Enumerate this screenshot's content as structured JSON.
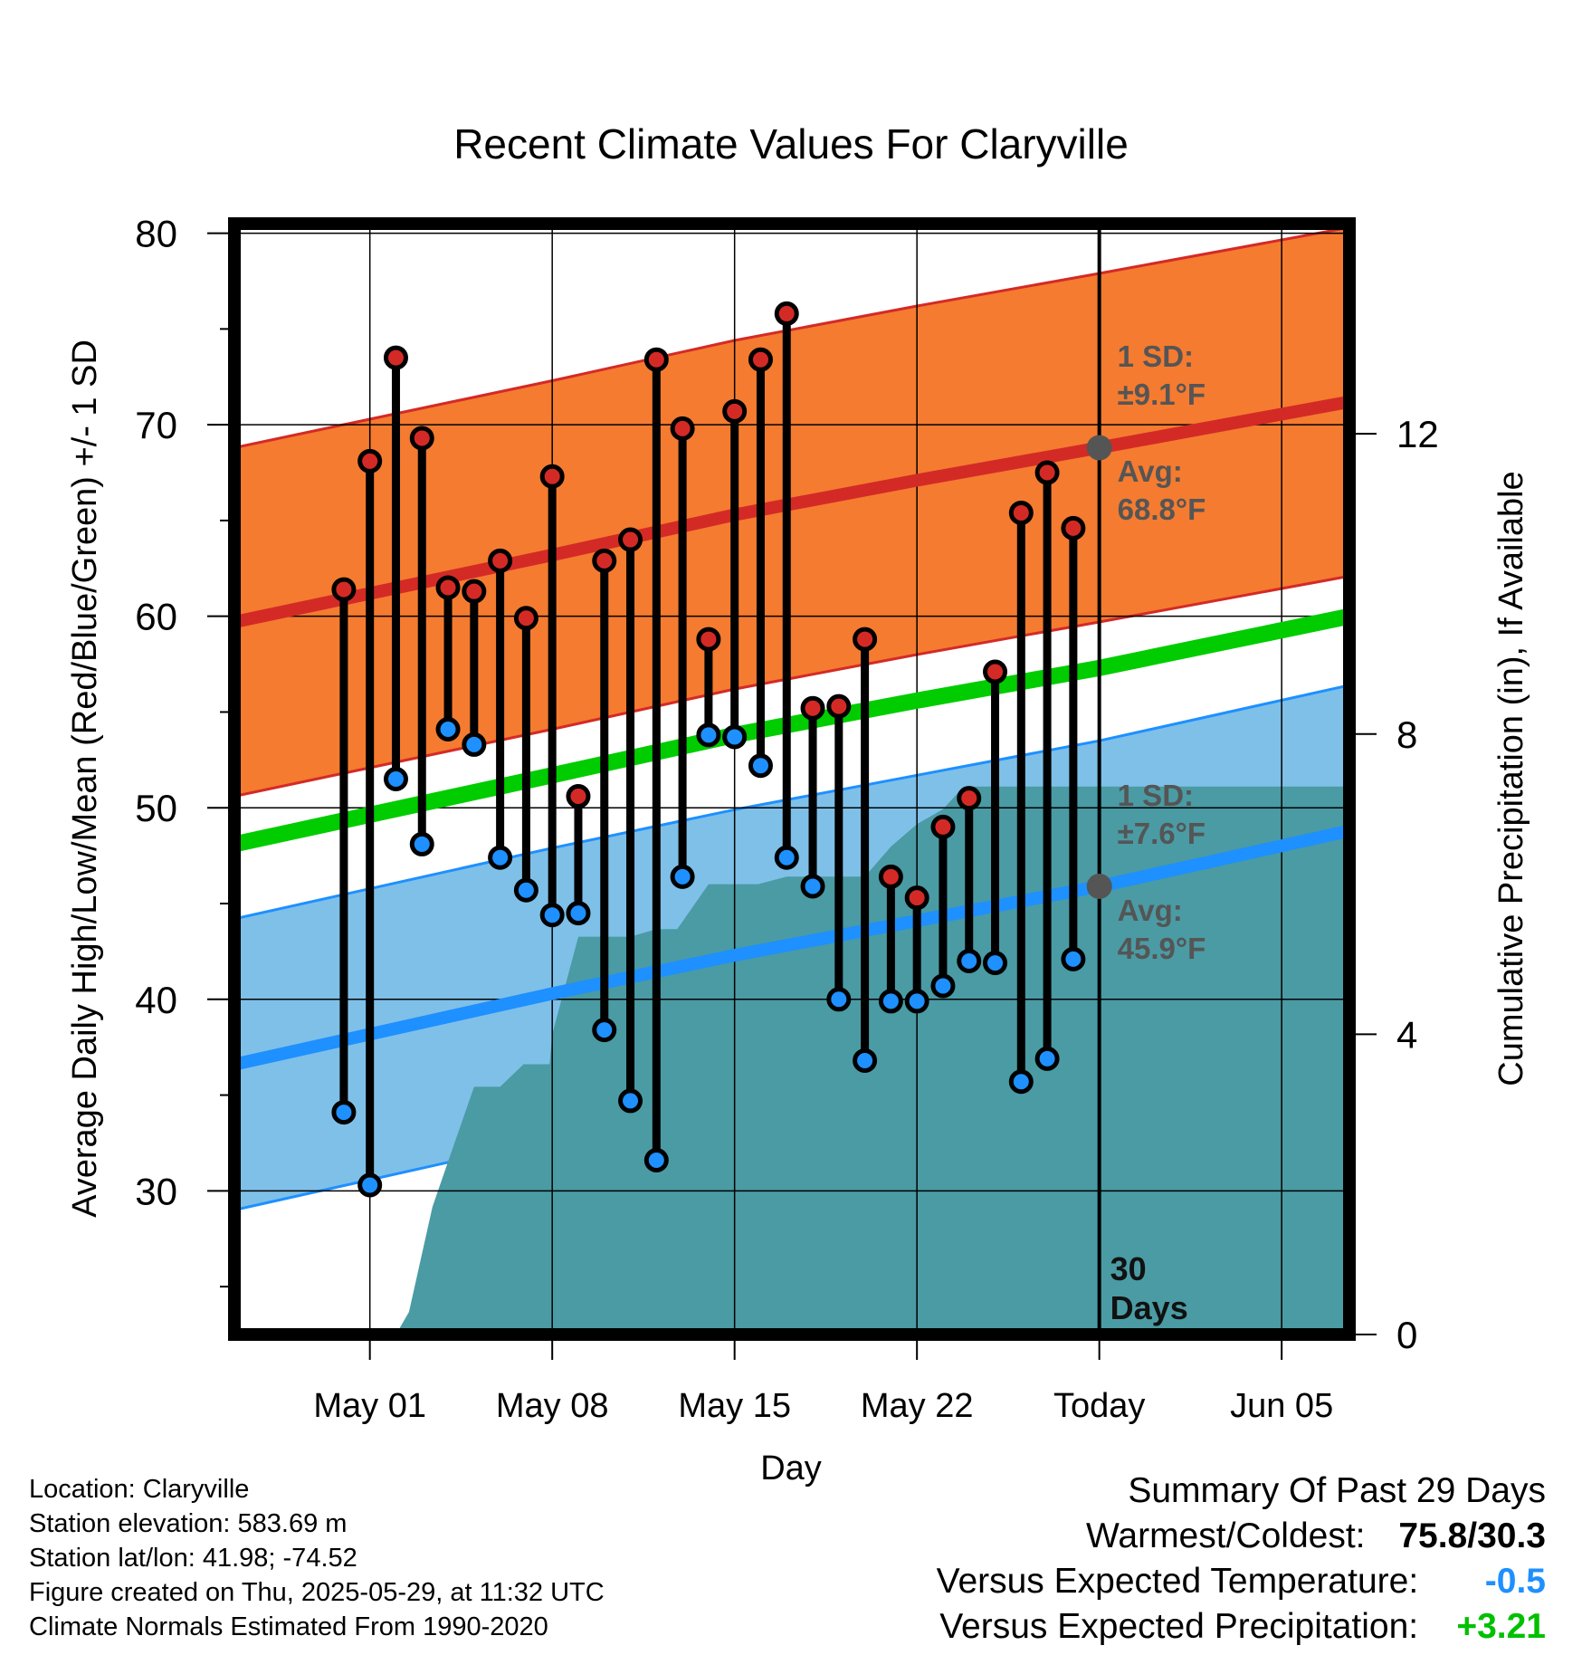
{
  "chart_data": {
    "type": "line",
    "title": "Recent Climate Values For Claryville",
    "xlabel": "Day",
    "ylabel_left": "Average Daily High/Low/Mean (Red/Blue/Green) +/- 1 SD",
    "ylabel_right": "Cumulative Precipitation (in), If Available",
    "ylim_left": [
      22.5,
      80.5
    ],
    "ylim_right": [
      0,
      14.8
    ],
    "xlim_days": [
      -33.2,
      9.6
    ],
    "x_ticks": [
      {
        "day": -28,
        "label": "May 01"
      },
      {
        "day": -21,
        "label": "May 08"
      },
      {
        "day": -14,
        "label": "May 15"
      },
      {
        "day": -7,
        "label": "May 22"
      },
      {
        "day": 0,
        "label": "Today"
      },
      {
        "day": 7,
        "label": "Jun 05"
      }
    ],
    "y_ticks_left": [
      30,
      40,
      50,
      60,
      70,
      80
    ],
    "y_ticks_right": [
      0,
      4,
      8,
      12
    ],
    "grid": true,
    "x_day_note": "x values are days relative to Today (May 29)",
    "normal_high": {
      "x": [
        -33.2,
        -21,
        -14,
        -7,
        0,
        9.6
      ],
      "avg": [
        59.7,
        63.2,
        65.3,
        67.1,
        68.8,
        71.2
      ],
      "sd": 9.1
    },
    "normal_low": {
      "x": [
        -33.2,
        -21,
        -14,
        -7,
        0,
        9.6
      ],
      "avg": [
        36.6,
        40.3,
        42.3,
        44.1,
        45.9,
        48.8
      ],
      "sd": 7.6
    },
    "normal_mean": {
      "x": [
        -33.2,
        -21,
        -14,
        -7,
        0,
        9.6
      ],
      "values": [
        48.1,
        51.7,
        53.8,
        55.6,
        57.3,
        60.0
      ]
    },
    "series": [
      {
        "name": "High",
        "x": [
          -29,
          -28,
          -27,
          -26,
          -25,
          -24,
          -23,
          -22,
          -21,
          -20,
          -19,
          -18,
          -17,
          -16,
          -15,
          -14,
          -13,
          -12,
          -11,
          -10,
          -9,
          -8,
          -7,
          -6,
          -5,
          -4,
          -3,
          -2,
          -1
        ],
        "values": [
          61.4,
          68.1,
          73.5,
          69.3,
          61.5,
          61.3,
          62.9,
          59.9,
          67.3,
          50.6,
          62.9,
          64.0,
          73.4,
          69.8,
          58.8,
          70.7,
          73.4,
          75.8,
          55.2,
          55.3,
          58.8,
          46.4,
          45.3,
          49.0,
          50.5,
          57.1,
          65.4,
          67.5,
          64.6
        ]
      },
      {
        "name": "Low",
        "x": [
          -29,
          -28,
          -27,
          -26,
          -25,
          -24,
          -23,
          -22,
          -21,
          -20,
          -19,
          -18,
          -17,
          -16,
          -15,
          -14,
          -13,
          -12,
          -11,
          -10,
          -9,
          -8,
          -7,
          -6,
          -5,
          -4,
          -3,
          -2,
          -1
        ],
        "values": [
          34.1,
          30.3,
          51.5,
          48.1,
          54.1,
          53.3,
          47.4,
          45.7,
          44.4,
          44.5,
          38.4,
          34.7,
          31.6,
          46.4,
          53.8,
          53.7,
          52.2,
          47.4,
          45.9,
          40.0,
          36.8,
          39.9,
          39.9,
          40.7,
          42.0,
          41.9,
          35.7,
          36.9,
          42.1
        ]
      },
      {
        "name": "Cumulative Precipitation",
        "x": [
          -28.8,
          -27.0,
          -26.5,
          -25.6,
          -25.0,
          -24.0,
          -23.0,
          -22.1,
          -21.1,
          -21.0,
          -20.0,
          -18.0,
          -17.0,
          -16.2,
          -15.0,
          -14.1,
          -13.1,
          -12.0,
          -11.0,
          -10.0,
          -9.0,
          -8.0,
          -7.0,
          -6.0,
          -5.2,
          -4.0,
          9.6
        ],
        "values": [
          0.0,
          0.0,
          0.3,
          1.7,
          2.3,
          3.3,
          3.3,
          3.6,
          3.6,
          4.0,
          5.3,
          5.3,
          5.4,
          5.4,
          6.0,
          6.0,
          6.0,
          6.1,
          6.1,
          6.1,
          6.1,
          6.5,
          6.8,
          7.0,
          7.3,
          7.3,
          7.3
        ]
      }
    ],
    "annotations": {
      "high_sd_label": "1 SD:",
      "high_sd_value": "±9.1°F",
      "high_avg_label": "Avg:",
      "high_avg_value": "68.8°F",
      "low_sd_label": "1 SD:",
      "low_sd_value": "±7.6°F",
      "low_avg_label": "Avg:",
      "low_avg_value": "45.9°F",
      "period_number": "30",
      "period_unit": "Days"
    },
    "colors": {
      "high_band": "#f47b30",
      "high_line": "#d42a26",
      "low_band": "#7fc0e8",
      "low_line": "#1e90ff",
      "mean_line": "#00cc00",
      "precip": "#4a9ba4",
      "high_point": "#d42a26",
      "low_point": "#1e90ff",
      "avg_dot": "#555555",
      "label_gray": "#555555"
    }
  },
  "footer": {
    "location": "Location: Claryville",
    "elevation": "Station elevation: 583.69 m",
    "latlon": "Station lat/lon: 41.98; -74.52",
    "created": "Figure created on Thu, 2025-05-29, at 11:32 UTC",
    "normals": "Climate Normals Estimated From 1990-2020"
  },
  "summary": {
    "title": "Summary Of Past 29 Days",
    "warm_cold_label": "Warmest/Coldest:",
    "warm_cold_value": "75.8/30.3",
    "temp_label": "Versus Expected Temperature:",
    "temp_value": "-0.5",
    "temp_color": "#1e90ff",
    "precip_label": "Versus Expected Precipitation:",
    "precip_value": "+3.21",
    "precip_color": "#00c000"
  }
}
